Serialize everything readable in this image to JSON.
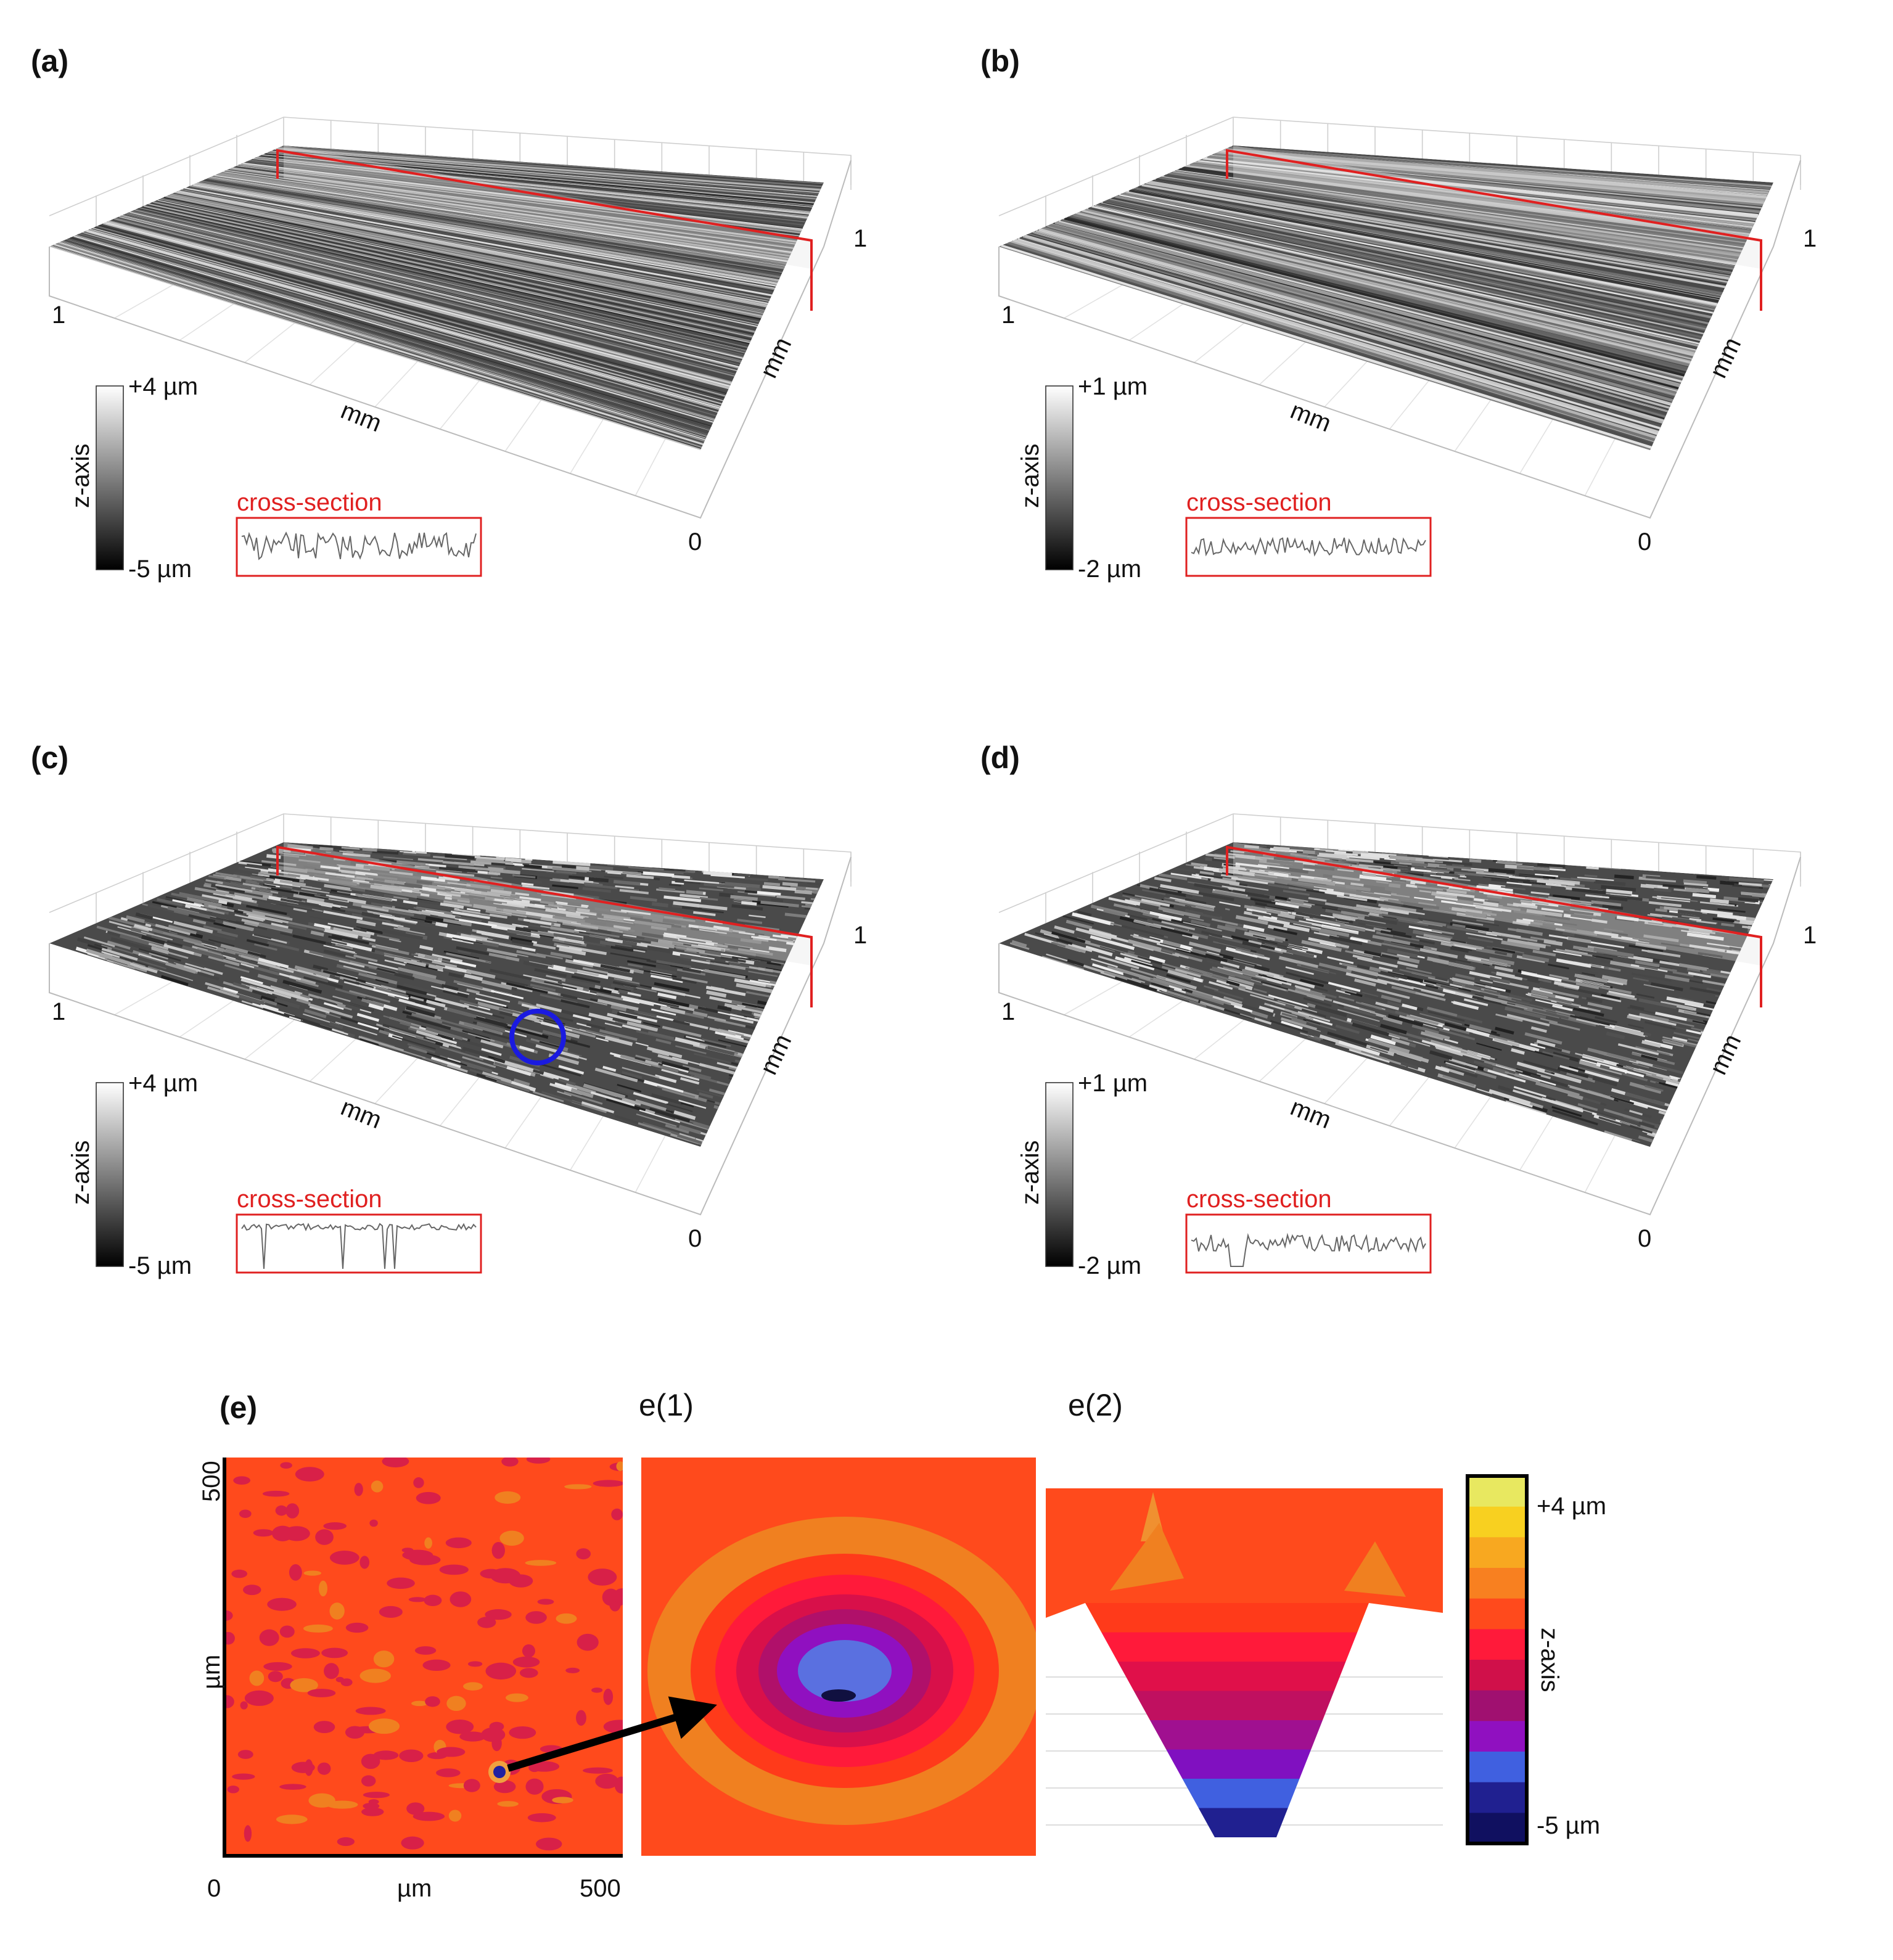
{
  "panels": [
    {
      "label": "(a)",
      "colorbar": {
        "max": "+4 µm",
        "min": "-5 µm",
        "title": "z-axis"
      },
      "axes": {
        "x_title": "mm",
        "y_title": "mm",
        "x_end": "1",
        "y_end": "1",
        "origin": "0"
      },
      "cross_section": "cross-section"
    },
    {
      "label": "(b)",
      "colorbar": {
        "max": "+1 µm",
        "min": "-2 µm",
        "title": "z-axis"
      },
      "axes": {
        "x_title": "mm",
        "y_title": "mm",
        "x_end": "1",
        "y_end": "1",
        "origin": "0"
      },
      "cross_section": "cross-section"
    },
    {
      "label": "(c)",
      "colorbar": {
        "max": "+4 µm",
        "min": "-5 µm",
        "title": "z-axis"
      },
      "axes": {
        "x_title": "mm",
        "y_title": "mm",
        "x_end": "1",
        "y_end": "1",
        "origin": "0"
      },
      "cross_section": "cross-section"
    },
    {
      "label": "(d)",
      "colorbar": {
        "max": "+1 µm",
        "min": "-2 µm",
        "title": "z-axis"
      },
      "axes": {
        "x_title": "mm",
        "y_title": "mm",
        "x_end": "1",
        "y_end": "1",
        "origin": "0"
      },
      "cross_section": "cross-section"
    }
  ],
  "panel_e": {
    "label": "(e)",
    "sub1": "e(1)",
    "sub2": "e(2)",
    "map": {
      "y_tick_top": "500",
      "y_title": "µm",
      "x_tick_start": "0",
      "x_title": "µm",
      "x_tick_end": "500"
    },
    "colorbar": {
      "max": "+4 µm",
      "min": "-5 µm",
      "title": "z-axis"
    }
  }
}
